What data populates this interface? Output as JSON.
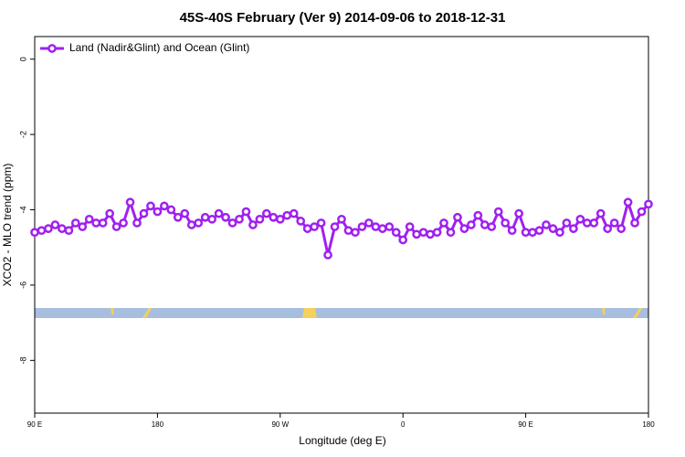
{
  "chart_data": {
    "type": "line",
    "title": "45S-40S February (Ver 9)   2014-09-06 to 2018-12-31",
    "x_label": "Longitude (deg E)",
    "y_label": "XCO2 - MLO trend (ppm)",
    "xlim": [
      90,
      540
    ],
    "xticks": [
      {
        "value": 90,
        "label": "90 E"
      },
      180,
      {
        "value": 270,
        "label": "90 W"
      },
      {
        "value": 360,
        "label": "0"
      },
      {
        "value": 450,
        "label": "90 E"
      },
      {
        "value": 540,
        "label": "180"
      }
    ],
    "ylim": [
      -9.4,
      0.6
    ],
    "yticks": [
      -8,
      -6,
      -4,
      -2,
      0
    ],
    "legend": "top-left",
    "x": [
      90,
      95,
      100,
      105,
      110,
      115,
      120,
      125,
      130,
      135,
      140,
      145,
      150,
      155,
      160,
      165,
      170,
      175,
      180,
      185,
      190,
      195,
      200,
      205,
      210,
      215,
      220,
      225,
      230,
      235,
      240,
      245,
      250,
      255,
      260,
      265,
      270,
      275,
      280,
      285,
      290,
      295,
      300,
      305,
      310,
      315,
      320,
      325,
      330,
      335,
      340,
      345,
      350,
      355,
      360,
      365,
      370,
      375,
      380,
      385,
      390,
      395,
      400,
      405,
      410,
      415,
      420,
      425,
      430,
      435,
      440,
      445,
      450,
      455,
      460,
      465,
      470,
      475,
      480,
      485,
      490,
      495,
      500,
      505,
      510,
      515,
      520,
      525,
      530,
      535,
      540
    ],
    "series": [
      {
        "name": "Land (Nadir&Glint) and Ocean (Glint)",
        "color": "#a020f0",
        "values": [
          -4.6,
          -4.55,
          -4.5,
          -4.4,
          -4.5,
          -4.55,
          -4.35,
          -4.45,
          -4.25,
          -4.35,
          -4.35,
          -4.1,
          -4.45,
          -4.35,
          -3.8,
          -4.35,
          -4.1,
          -3.9,
          -4.05,
          -3.9,
          -4.0,
          -4.2,
          -4.1,
          -4.4,
          -4.35,
          -4.2,
          -4.25,
          -4.1,
          -4.2,
          -4.35,
          -4.25,
          -4.05,
          -4.4,
          -4.25,
          -4.1,
          -4.2,
          -4.25,
          -4.15,
          -4.1,
          -4.3,
          -4.5,
          -4.45,
          -4.35,
          -5.2,
          -4.45,
          -4.25,
          -4.55,
          -4.6,
          -4.45,
          -4.35,
          -4.45,
          -4.5,
          -4.45,
          -4.6,
          -4.8,
          -4.45,
          -4.65,
          -4.6,
          -4.65,
          -4.6,
          -4.35,
          -4.6,
          -4.2,
          -4.5,
          -4.4,
          -4.15,
          -4.4,
          -4.45,
          -4.05,
          -4.35,
          -4.55,
          -4.1,
          -4.6,
          -4.6,
          -4.55,
          -4.4,
          -4.5,
          -4.6,
          -4.35,
          -4.5,
          -4.25,
          -4.35,
          -4.35,
          -4.1,
          -4.5,
          -4.35,
          -4.5,
          -3.8,
          -4.35,
          -4.05,
          -3.85
        ]
      }
    ]
  }
}
